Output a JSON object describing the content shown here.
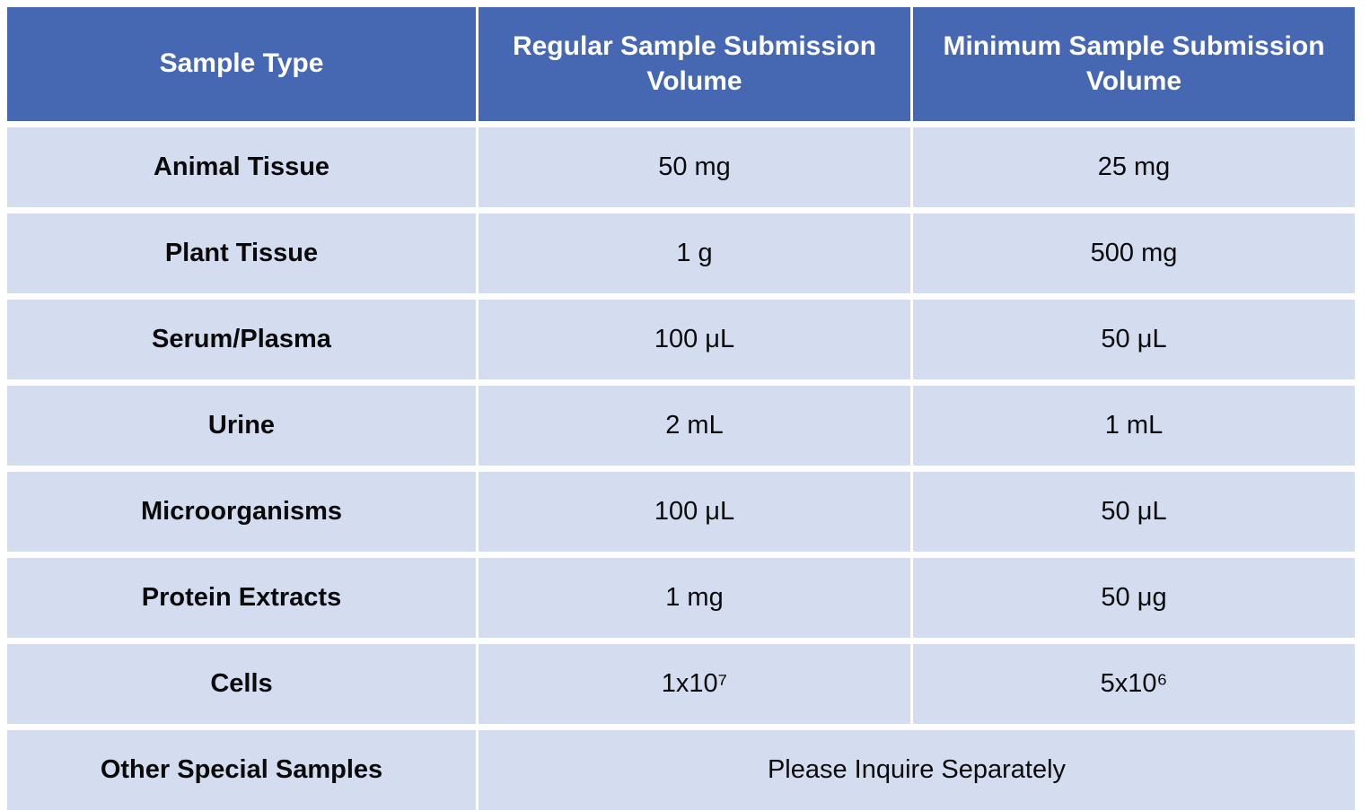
{
  "table": {
    "columns": [
      "Sample Type",
      "Regular Sample Submission Volume",
      "Minimum Sample Submission Volume"
    ],
    "rows": [
      {
        "type": "Animal Tissue",
        "regular": "50 mg",
        "minimum": "25 mg"
      },
      {
        "type": "Plant Tissue",
        "regular": "1 g",
        "minimum": "500 mg"
      },
      {
        "type": "Serum/Plasma",
        "regular": "100 μL",
        "minimum": "50 μL"
      },
      {
        "type": "Urine",
        "regular": "2 mL",
        "minimum": "1 mL"
      },
      {
        "type": "Microorganisms",
        "regular": "100 μL",
        "minimum": "50 μL"
      },
      {
        "type": "Protein Extracts",
        "regular": "1 mg",
        "minimum": "50 μg"
      },
      {
        "type": "Cells",
        "regular": "1x10⁷",
        "minimum": "5x10⁶"
      },
      {
        "type": "Other Special Samples",
        "merged": "Please Inquire Separately"
      }
    ],
    "colors": {
      "header_bg": "#4667b1",
      "header_text": "#ffffff",
      "row_bg": "#d3ddef",
      "row_text": "#0a0a0a",
      "gap": "#ffffff"
    }
  }
}
